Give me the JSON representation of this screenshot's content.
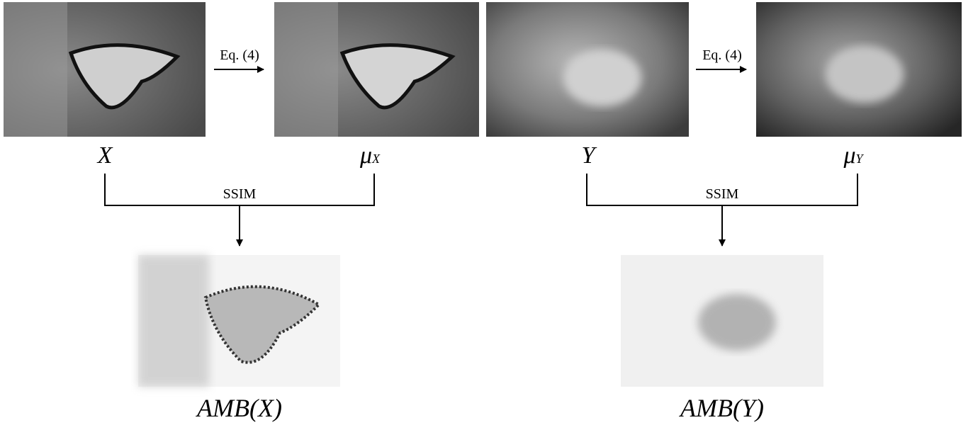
{
  "left": {
    "input_label": "X",
    "mean_symbol": "μ",
    "mean_subscript": "X",
    "operation": "Eq. (4)",
    "comparison": "SSIM",
    "output_label": "AMB(X)"
  },
  "right": {
    "input_label": "Y",
    "mean_symbol": "μ",
    "mean_subscript": "Y",
    "operation": "Eq. (4)",
    "comparison": "SSIM",
    "output_label": "AMB(Y)"
  }
}
